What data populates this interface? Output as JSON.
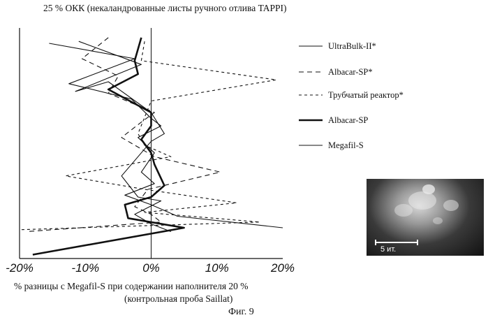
{
  "chart_data": {
    "type": "line",
    "title": "25 % ОКК (некаландрованные листы ручного отлива TAPPI)",
    "xlabel_line1": "% разницы с Megafil-S при содержании наполнителя 20 %",
    "xlabel_line2": "(контрольная проба Saillat)",
    "caption": "Фиг. 9",
    "xlim": [
      -20,
      20
    ],
    "xticks": [
      "-20%",
      "-10%",
      "0%",
      "10%",
      "20%"
    ],
    "xtick_values": [
      -20,
      -10,
      0,
      10,
      20
    ],
    "ylim": [
      0,
      12
    ],
    "legend_position": "right",
    "series": [
      {
        "name": "UltraBulk-II*",
        "style": "thin-solid",
        "points": [
          [
            -15.5,
            11.2
          ],
          [
            -2.5,
            10.4
          ],
          [
            -12.5,
            9.1
          ],
          [
            -3,
            8.3
          ],
          [
            0,
            7.3
          ],
          [
            1.5,
            6.9
          ],
          [
            -2,
            6.3
          ],
          [
            0.5,
            5.5
          ],
          [
            -1.5,
            4.5
          ],
          [
            0.5,
            3.9
          ],
          [
            -4,
            3.3
          ],
          [
            0,
            2.8
          ],
          [
            4,
            2.2
          ],
          [
            20,
            1.6
          ]
        ]
      },
      {
        "name": "Albacar-SP*",
        "style": "dashed",
        "points": [
          [
            -6.5,
            11.5
          ],
          [
            -10.5,
            10.4
          ],
          [
            -5,
            9.5
          ],
          [
            -6.5,
            8.6
          ],
          [
            0.5,
            7.6
          ],
          [
            -1.5,
            7.1
          ],
          [
            -4.5,
            6.3
          ],
          [
            -2,
            5.8
          ],
          [
            0.5,
            5.3
          ],
          [
            10.5,
            4.5
          ],
          [
            -0.5,
            3.6
          ],
          [
            -2.5,
            2.7
          ],
          [
            0,
            2.3
          ],
          [
            1.5,
            1.9
          ],
          [
            -19,
            1.4
          ]
        ]
      },
      {
        "name": "Трубчатый реактор*",
        "style": "short-dashed",
        "points": [
          [
            -1,
            11.3
          ],
          [
            -1.5,
            10.3
          ],
          [
            19,
            9.3
          ],
          [
            0,
            8.2
          ],
          [
            -2,
            6.5
          ],
          [
            -1,
            5.9
          ],
          [
            3,
            5.3
          ],
          [
            -13,
            4.3
          ],
          [
            -1,
            3.6
          ],
          [
            13,
            2.9
          ],
          [
            -1,
            2.4
          ],
          [
            16.5,
            1.9
          ],
          [
            -20,
            1.5
          ]
        ]
      },
      {
        "name": "Albacar-SP",
        "style": "thick-solid",
        "points": [
          [
            -1.5,
            11.5
          ],
          [
            -2.5,
            10.3
          ],
          [
            -2,
            9.6
          ],
          [
            -6.5,
            8.8
          ],
          [
            0,
            7.6
          ],
          [
            0,
            6.9
          ],
          [
            -1.5,
            6.2
          ],
          [
            0,
            5.5
          ],
          [
            0.5,
            4.9
          ],
          [
            2,
            3.8
          ],
          [
            0,
            3.2
          ],
          [
            -4,
            2.8
          ],
          [
            -3.5,
            2.1
          ],
          [
            5,
            1.6
          ],
          [
            -18,
            0.2
          ]
        ]
      },
      {
        "name": "Megafil-S",
        "style": "thin-solid",
        "points": [
          [
            -11,
            11.3
          ],
          [
            -1.5,
            10.1
          ],
          [
            -11.5,
            8.7
          ],
          [
            -6.5,
            9.2
          ],
          [
            0,
            7.6
          ],
          [
            2,
            6.5
          ],
          [
            0,
            6.1
          ],
          [
            -4.5,
            4.3
          ],
          [
            -2,
            3.2
          ],
          [
            1.5,
            3.0
          ],
          [
            -2.5,
            2.3
          ],
          [
            0,
            1.8
          ],
          [
            3,
            1.4
          ]
        ]
      }
    ]
  },
  "scale_bar_label": "5 ит."
}
